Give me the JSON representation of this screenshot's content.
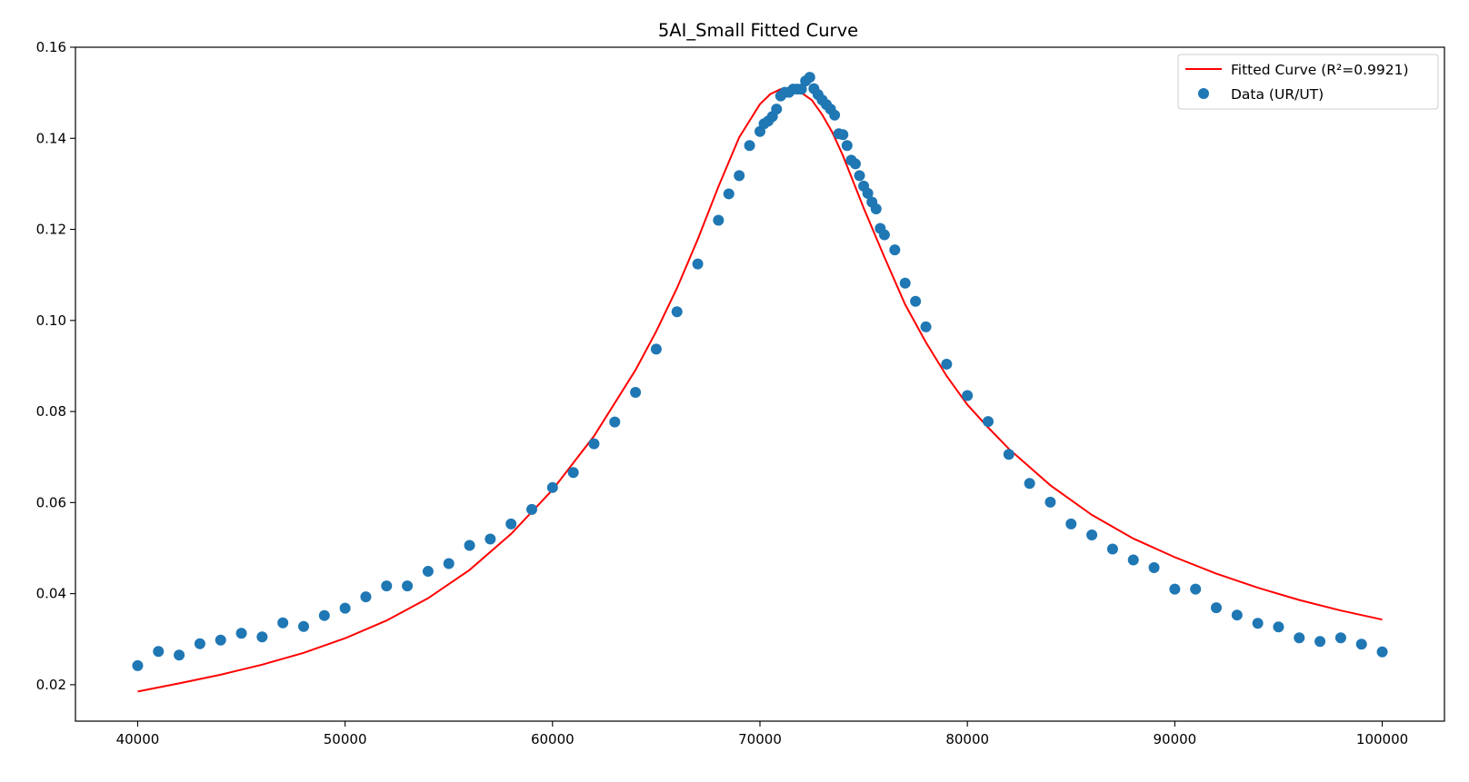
{
  "chart_data": {
    "type": "scatter",
    "title": "5AI_Small Fitted Curve",
    "xlabel": "",
    "ylabel": "",
    "xlim": [
      37000,
      103000
    ],
    "ylim": [
      0.012,
      0.16
    ],
    "xticks": [
      40000,
      50000,
      60000,
      70000,
      80000,
      90000,
      100000
    ],
    "xtick_labels": [
      "40000",
      "50000",
      "60000",
      "70000",
      "80000",
      "90000",
      "100000"
    ],
    "yticks": [
      0.02,
      0.04,
      0.06,
      0.08,
      0.1,
      0.12,
      0.14,
      0.16
    ],
    "ytick_labels": [
      "0.02",
      "0.04",
      "0.06",
      "0.08",
      "0.10",
      "0.12",
      "0.14",
      "0.16"
    ],
    "grid": false,
    "legend_position": "top-right",
    "series": [
      {
        "name": "Fitted Curve (R²=0.9921)",
        "kind": "line",
        "color": "#ff0000",
        "x": [
          40000,
          42000,
          44000,
          46000,
          48000,
          50000,
          52000,
          54000,
          56000,
          58000,
          60000,
          62000,
          64000,
          65000,
          66000,
          67000,
          68000,
          69000,
          70000,
          70500,
          71000,
          71500,
          72000,
          72500,
          73000,
          73500,
          74000,
          75000,
          76000,
          77000,
          78000,
          79000,
          80000,
          81000,
          82000,
          84000,
          86000,
          88000,
          90000,
          92000,
          94000,
          96000,
          98000,
          100000
        ],
        "y": [
          0.0185,
          0.0203,
          0.0222,
          0.0244,
          0.027,
          0.0302,
          0.0341,
          0.039,
          0.0452,
          0.0531,
          0.0628,
          0.0746,
          0.0891,
          0.0976,
          0.1071,
          0.1178,
          0.1294,
          0.1402,
          0.1475,
          0.1497,
          0.1508,
          0.1508,
          0.15,
          0.1484,
          0.1452,
          0.1412,
          0.1362,
          0.1247,
          0.1139,
          0.1035,
          0.0952,
          0.0878,
          0.0815,
          0.0765,
          0.0718,
          0.0638,
          0.0573,
          0.0521,
          0.048,
          0.0444,
          0.0413,
          0.0386,
          0.0363,
          0.0343
        ]
      },
      {
        "name": "Data (UR/UT)",
        "kind": "scatter",
        "color": "#1f77b4",
        "x": [
          40000,
          41000,
          42000,
          43000,
          44000,
          45000,
          46000,
          47000,
          48000,
          49000,
          50000,
          51000,
          52000,
          53000,
          54000,
          55000,
          56000,
          57000,
          58000,
          59000,
          60000,
          61000,
          62000,
          63000,
          64000,
          65000,
          66000,
          67000,
          68000,
          68500,
          69000,
          69500,
          70000,
          70200,
          70400,
          70600,
          70800,
          71000,
          71200,
          71400,
          71600,
          71800,
          72000,
          72200,
          72400,
          72600,
          72800,
          73000,
          73200,
          73400,
          73600,
          73800,
          74000,
          74200,
          74400,
          74600,
          74800,
          75000,
          75200,
          75400,
          75600,
          75800,
          76000,
          76500,
          77000,
          77500,
          78000,
          79000,
          80000,
          81000,
          82000,
          83000,
          84000,
          85000,
          86000,
          87000,
          88000,
          89000,
          90000,
          91000,
          92000,
          93000,
          94000,
          95000,
          96000,
          97000,
          98000,
          99000,
          100000
        ],
        "y": [
          0.0242,
          0.0273,
          0.0265,
          0.029,
          0.0298,
          0.0313,
          0.0305,
          0.0336,
          0.0328,
          0.0352,
          0.0368,
          0.0393,
          0.0417,
          0.0417,
          0.0449,
          0.0466,
          0.0506,
          0.052,
          0.0553,
          0.0585,
          0.0633,
          0.0666,
          0.0729,
          0.0777,
          0.0842,
          0.0937,
          0.1019,
          0.1124,
          0.122,
          0.1278,
          0.1318,
          0.1384,
          0.1415,
          0.1432,
          0.1438,
          0.1448,
          0.1464,
          0.1493,
          0.1501,
          0.1501,
          0.1508,
          0.1508,
          0.1508,
          0.1526,
          0.1534,
          0.1509,
          0.1496,
          0.1484,
          0.1474,
          0.1464,
          0.1451,
          0.141,
          0.1408,
          0.1384,
          0.1352,
          0.1344,
          0.1318,
          0.1295,
          0.1279,
          0.126,
          0.1245,
          0.1202,
          0.1188,
          0.1155,
          0.1082,
          0.1042,
          0.0986,
          0.0904,
          0.0835,
          0.0778,
          0.0706,
          0.0642,
          0.0601,
          0.0553,
          0.0529,
          0.0498,
          0.0474,
          0.0457,
          0.041,
          0.041,
          0.0369,
          0.0353,
          0.0335,
          0.0327,
          0.0303,
          0.0295,
          0.0303,
          0.0289,
          0.0272
        ]
      }
    ]
  }
}
